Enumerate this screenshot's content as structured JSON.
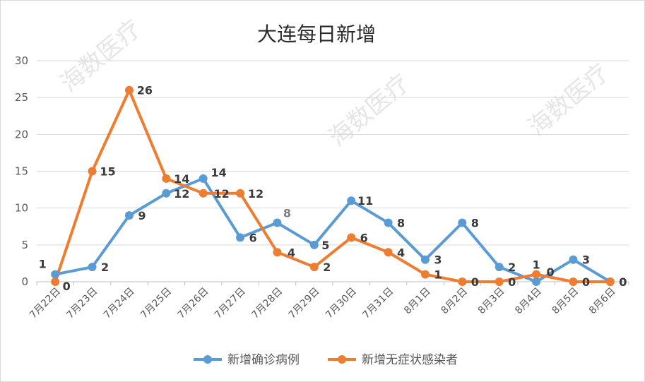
{
  "watermark": "海数医疗",
  "chart_data": {
    "type": "line",
    "title": "大连每日新增",
    "xlabel": "",
    "ylabel": "",
    "categories": [
      "7月22日",
      "7月23日",
      "7月24日",
      "7月25日",
      "7月26日",
      "7月27日",
      "7月28日",
      "7月29日",
      "7月30日",
      "7月31日",
      "8月1日",
      "8月2日",
      "8月3日",
      "8月4日",
      "8月5日",
      "8月6日"
    ],
    "ylim": [
      0,
      30
    ],
    "yticks": [
      0,
      5,
      10,
      15,
      20,
      25,
      30
    ],
    "grid": true,
    "legend_position": "bottom",
    "series": [
      {
        "name": "新增确诊病例",
        "color": "#5b9bd5",
        "values": [
          1,
          2,
          9,
          12,
          14,
          6,
          8,
          5,
          11,
          8,
          3,
          8,
          2,
          0,
          3,
          0
        ],
        "labels": [
          "1",
          "2",
          "9",
          "12",
          "14",
          "6",
          "8",
          "5",
          "11",
          "8",
          "3",
          "8",
          "2",
          "0",
          "3",
          "0"
        ]
      },
      {
        "name": "新增无症状感染者",
        "color": "#ed7d31",
        "values": [
          0,
          15,
          26,
          14,
          12,
          12,
          4,
          2,
          6,
          4,
          1,
          0,
          0,
          1,
          0,
          0
        ],
        "labels": [
          "0",
          "15",
          "26",
          "14",
          "12",
          "12",
          "4",
          "2",
          "6",
          "4",
          "1",
          "0",
          "0",
          "1",
          "0",
          "0"
        ]
      }
    ]
  }
}
